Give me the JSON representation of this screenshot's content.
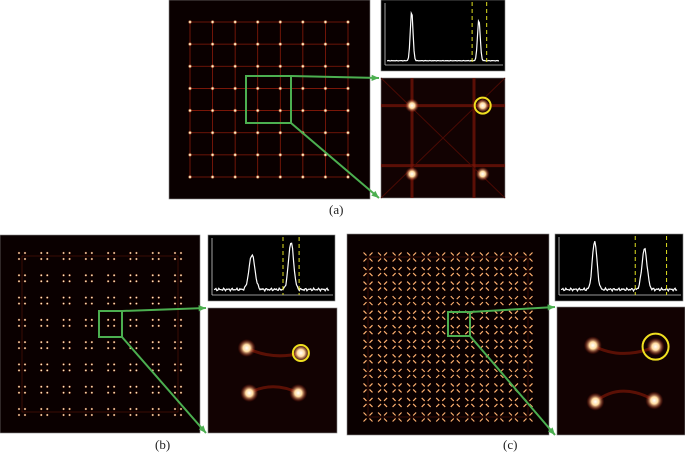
{
  "panels": [
    {
      "label": "(a)",
      "pattern": "grid-spots"
    },
    {
      "label": "(b)",
      "pattern": "quad-spots"
    },
    {
      "label": "(c)",
      "pattern": "rotated-streaks"
    }
  ],
  "colors": {
    "background": "#0a0000",
    "spot": "#ffdca0",
    "line": "#8a1a0a",
    "highlight_box": "#4caf50",
    "circle": "#f0e020",
    "profile": "#ffffff",
    "dashed_marker": "#e0e020"
  }
}
